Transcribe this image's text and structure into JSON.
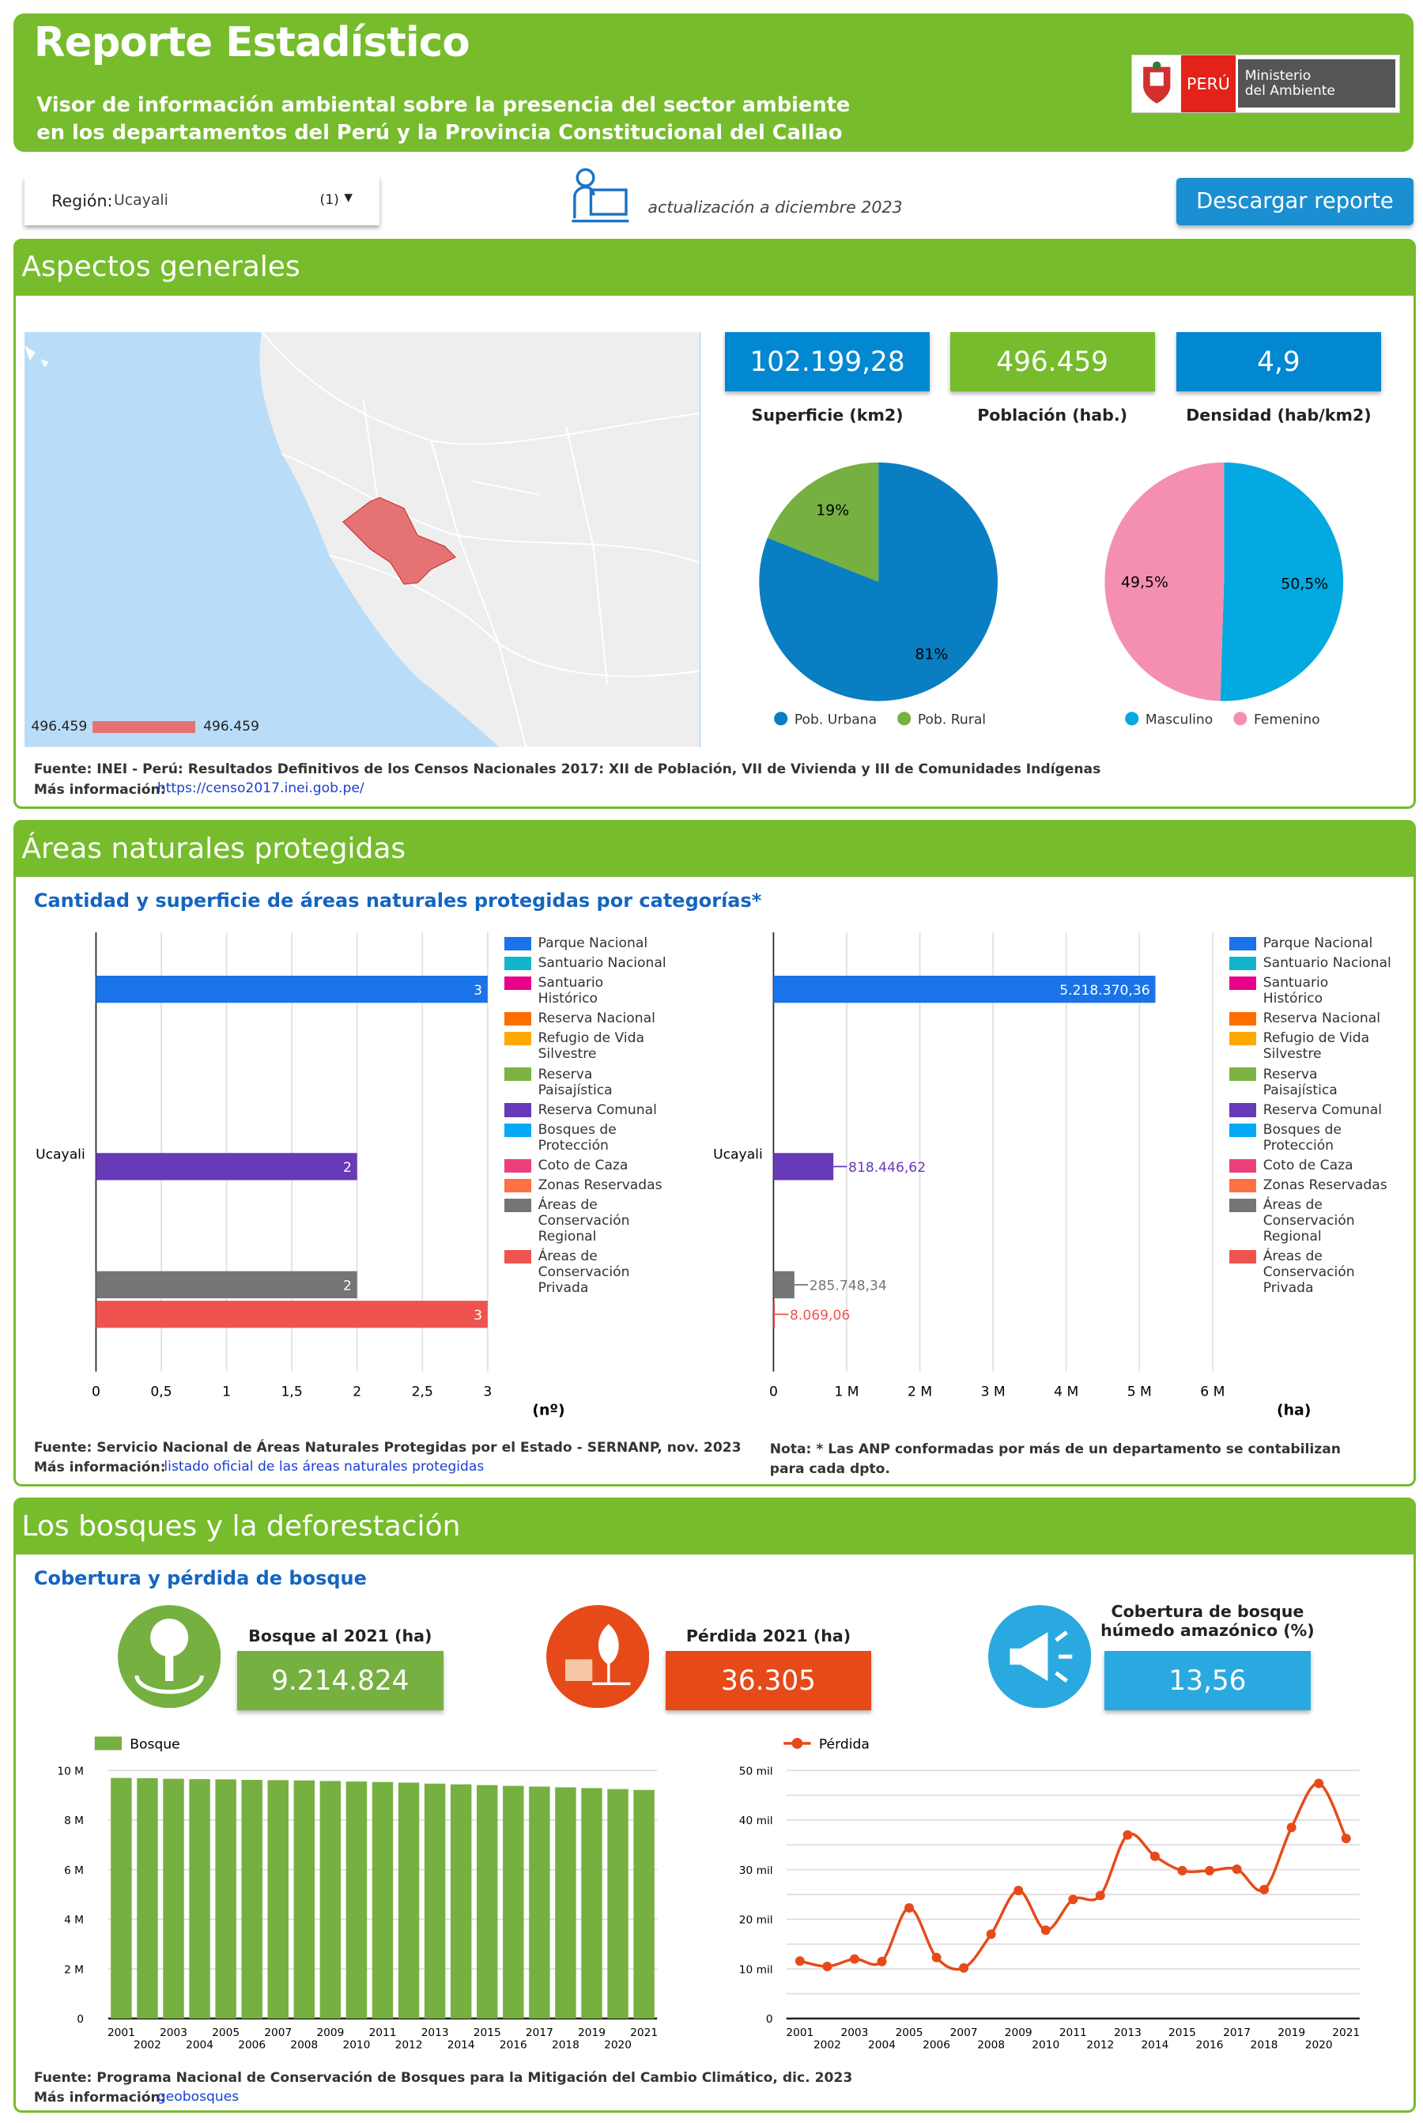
{
  "header": {
    "title": "Reporte Estadístico",
    "subtitle_1": "Visor de información ambiental sobre la presencia del sector ambiente",
    "subtitle_2": "en los departamentos del Perú y la Provincia Constitucional del Callao",
    "logo": {
      "peru": "PERÚ",
      "ministry_1": "Ministerio",
      "ministry_2": "del Ambiente"
    }
  },
  "controls": {
    "region_label": "Región:",
    "region_value": "Ucayali",
    "region_count": "(1)",
    "update_text": "actualización a diciembre 2023",
    "download_label": "Descargar reporte"
  },
  "general": {
    "title": "Aspectos generales",
    "map_legend": {
      "min": "496.459",
      "max": "496.459"
    },
    "kpis": [
      {
        "value": "102.199,28",
        "label": "Superficie (km2)",
        "color": "#0288d1"
      },
      {
        "value": "496.459",
        "label": "Población (hab.)",
        "color": "#76bc2c"
      },
      {
        "value": "4,9",
        "label": "Densidad (hab/km2)",
        "color": "#0288d1"
      }
    ],
    "pie_area": {
      "slices": [
        {
          "name": "Pob. Urbana",
          "value": 81,
          "label": "81%",
          "color": "#0a7ec2"
        },
        {
          "name": "Pob. Rural",
          "value": 19,
          "label": "19%",
          "color": "#76b041"
        }
      ]
    },
    "pie_sex": {
      "slices": [
        {
          "name": "Masculino",
          "value": 50.5,
          "label": "50,5%",
          "color": "#03a9e0"
        },
        {
          "name": "Femenino",
          "value": 49.5,
          "label": "49,5%",
          "color": "#f48fb1"
        }
      ]
    },
    "source": "Fuente: INEI - Perú: Resultados Definitivos de los Censos Nacionales 2017: XII de Población, VII de Vivienda y III de Comunidades Indígenas",
    "more_label": "Más información:",
    "more_link": "https://censo2017.inei.gob.pe/"
  },
  "anp": {
    "title": "Áreas naturales protegidas",
    "subtitle": "Cantidad y superficie de áreas naturales protegidas por categorías*",
    "categories": [
      "Parque Nacional",
      "Santuario Nacional",
      "Santuario Histórico",
      "Reserva Nacional",
      "Refugio de Vida Silvestre",
      "Reserva Paisajística",
      "Reserva Comunal",
      "Bosques de Protección",
      "Coto de Caza",
      "Zonas Reservadas",
      "Áreas de Conservación Regional",
      "Áreas de Conservación Privada"
    ],
    "colors": [
      "#1a73e8",
      "#12b5cb",
      "#e8008a",
      "#ff6d01",
      "#ffa800",
      "#7cb342",
      "#673ab7",
      "#03a9f4",
      "#ec407a",
      "#ff7043",
      "#757575",
      "#ef5350"
    ],
    "source": "Fuente: Servicio Nacional de Áreas Naturales Protegidas por el Estado - SERNANP, nov. 2023",
    "more_label": "Más información:",
    "more_link": "listado oficial de las áreas naturales protegidas",
    "note": "Nota: * Las ANP conformadas por más de un departamento se contabilizan para cada dpto."
  },
  "forest": {
    "title": "Los bosques y la deforestación",
    "subtitle": "Cobertura y pérdida de bosque",
    "kpis": [
      {
        "label": "Bosque al 2021 (ha)",
        "value": "9.214.824",
        "color": "#76b041"
      },
      {
        "label": "Pérdida 2021 (ha)",
        "value": "36.305",
        "color": "#e64a19"
      },
      {
        "label": "Cobertura de bosque húmedo amazónico (%)",
        "value": "13,56",
        "color": "#29a9e0"
      }
    ],
    "source": "Fuente: Programa Nacional de Conservación de Bosques para la Mitigación del Cambio Climático, dic. 2023",
    "more_label": "Más información:",
    "more_link": "geobosques"
  },
  "chart_data": [
    {
      "type": "bar",
      "orientation": "horizontal",
      "categories": [
        "Ucayali"
      ],
      "xlabel": "(nº)",
      "xlim": [
        0,
        3
      ],
      "xticks": [
        "0",
        "0,5",
        "1",
        "1,5",
        "2",
        "2,5",
        "3"
      ],
      "series": [
        {
          "name": "Parque Nacional",
          "values": [
            3
          ],
          "label": "3"
        },
        {
          "name": "Reserva Comunal",
          "values": [
            2
          ],
          "label": "2"
        },
        {
          "name": "Áreas de Conservación Regional",
          "values": [
            2
          ],
          "label": "2"
        },
        {
          "name": "Áreas de Conservación Privada",
          "values": [
            3
          ],
          "label": "3"
        }
      ],
      "legend": "right"
    },
    {
      "type": "bar",
      "orientation": "horizontal",
      "categories": [
        "Ucayali"
      ],
      "xlabel": "(ha)",
      "xlim": [
        0,
        6000000
      ],
      "xticks": [
        "0",
        "1 M",
        "2 M",
        "3 M",
        "4 M",
        "5 M",
        "6 M"
      ],
      "series": [
        {
          "name": "Parque Nacional",
          "values": [
            5218370.36
          ],
          "label": "5.218.370,36"
        },
        {
          "name": "Reserva Comunal",
          "values": [
            818446.62
          ],
          "label": "818.446,62"
        },
        {
          "name": "Áreas de Conservación Regional",
          "values": [
            285748.34
          ],
          "label": "285.748,34"
        },
        {
          "name": "Áreas de Conservación Privada",
          "values": [
            8069.06
          ],
          "label": "8.069,06"
        }
      ],
      "legend": "right"
    },
    {
      "type": "bar",
      "series_name": "Bosque",
      "color": "#76b041",
      "ylim": [
        0,
        10000000
      ],
      "yticks": [
        "0",
        "2 M",
        "4 M",
        "6 M",
        "8 M",
        "10 M"
      ],
      "x": [
        2001,
        2002,
        2003,
        2004,
        2005,
        2006,
        2007,
        2008,
        2009,
        2010,
        2011,
        2012,
        2013,
        2014,
        2015,
        2016,
        2017,
        2018,
        2019,
        2020,
        2021
      ],
      "values": [
        9700000,
        9690000,
        9665000,
        9650000,
        9640000,
        9620000,
        9610000,
        9600000,
        9575000,
        9555000,
        9535000,
        9510000,
        9470000,
        9440000,
        9410000,
        9380000,
        9350000,
        9320000,
        9290000,
        9250000,
        9214824
      ],
      "legend": "top-left",
      "grid": true
    },
    {
      "type": "line",
      "series_name": "Pérdida",
      "color": "#e64a19",
      "ylim": [
        0,
        50000
      ],
      "yticks": [
        "0",
        "10 mil",
        "20 mil",
        "30 mil",
        "40 mil",
        "50 mil"
      ],
      "x": [
        2001,
        2002,
        2003,
        2004,
        2005,
        2006,
        2007,
        2008,
        2009,
        2010,
        2011,
        2012,
        2013,
        2014,
        2015,
        2016,
        2017,
        2018,
        2019,
        2020,
        2021
      ],
      "values": [
        11600,
        10500,
        12000,
        11500,
        22300,
        12300,
        10200,
        17000,
        25800,
        17800,
        24000,
        24800,
        37000,
        32700,
        29800,
        29800,
        30100,
        26000,
        38500,
        47400,
        36305
      ],
      "legend": "top-left",
      "grid": true
    }
  ]
}
